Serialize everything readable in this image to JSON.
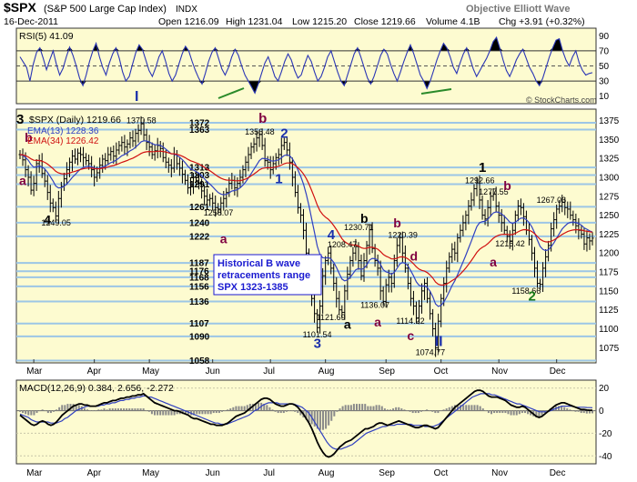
{
  "header": {
    "symbol": "$SPX",
    "name": "(S&P 500 Large Cap Index)",
    "exchange": "INDX",
    "date": "16-Dec-2011",
    "open": "Open 1216.09",
    "high": "High 1231.04",
    "low": "Low 1215.20",
    "close": "Close 1219.66",
    "volume": "Volume 4.1B",
    "change": "Chg +3.91 (+0.32%)",
    "source": "Objective Elliott Wave",
    "credit": "© StockCharts.com"
  },
  "colors": {
    "panel": "#fdfbd0",
    "level_line": "#9cc6e6",
    "wave_black": "#000000",
    "wave_blue": "#1a2faa",
    "wave_maroon": "#800040",
    "wave_green": "#1a7a1a",
    "ema13": "#3040c0",
    "ema34": "#d01010",
    "rsi": "#2a35b5",
    "macd": "#000000",
    "signal": "#3040c0",
    "hist": "#8a8a8a",
    "note": "#1a1ad0",
    "trend": "#2a8a2a"
  },
  "chart_data": [
    {
      "type": "line",
      "panel": "rsi",
      "legend": "RSI(5) 41.09",
      "ylim": [
        0,
        100
      ],
      "yticks": [
        10,
        30,
        50,
        70,
        90
      ],
      "reference_lines": [
        30,
        50,
        70
      ],
      "values": [
        62,
        55,
        48,
        30,
        52,
        68,
        74,
        60,
        45,
        58,
        70,
        52,
        38,
        47,
        62,
        75,
        64,
        50,
        34,
        24,
        38,
        56,
        70,
        80,
        62,
        48,
        38,
        54,
        66,
        74,
        60,
        42,
        30,
        36,
        52,
        68,
        78,
        72,
        58,
        44,
        36,
        48,
        62,
        70,
        56,
        40,
        30,
        38,
        52,
        66,
        76,
        70,
        56,
        44,
        34,
        26,
        40,
        56,
        68,
        74,
        60,
        46,
        38,
        48,
        62,
        72,
        64,
        50,
        38,
        30,
        22,
        14,
        26,
        40,
        54,
        62,
        50,
        36,
        30,
        42,
        56,
        66,
        58,
        44,
        34,
        38,
        52,
        64,
        56,
        42,
        30,
        36,
        48,
        62,
        70,
        56,
        42,
        30,
        24,
        38,
        52,
        66,
        74,
        62,
        48,
        34,
        26,
        36,
        50,
        64,
        72,
        66,
        52,
        40,
        30,
        42,
        56,
        68,
        78,
        66,
        52,
        38,
        30,
        20,
        30,
        44,
        58,
        70,
        80,
        74,
        62,
        48,
        40,
        54,
        66,
        74,
        60,
        46,
        36,
        44,
        52,
        60,
        70,
        82,
        88,
        74,
        58,
        44,
        36,
        46,
        58,
        66,
        72,
        60,
        48,
        40,
        30,
        24,
        34,
        48,
        62,
        74,
        84,
        86,
        70,
        58,
        50,
        62,
        70,
        54,
        44,
        38,
        40,
        41.09
      ]
    },
    {
      "type": "line",
      "panel": "price",
      "legend": "$SPX (Daily) 1219.66",
      "ema13_label": "EMA(13) 1228.36",
      "ema34_label": "EMA(34) 1226.42",
      "ylim": [
        1055,
        1390
      ],
      "yticks": [
        1075,
        1100,
        1125,
        1150,
        1175,
        1200,
        1225,
        1250,
        1275,
        1300,
        1325,
        1350,
        1375
      ],
      "x_ticks": [
        {
          "label": "Mar",
          "i": 5
        },
        {
          "label": "Apr",
          "i": 27
        },
        {
          "label": "May",
          "i": 47
        },
        {
          "label": "Jun",
          "i": 70
        },
        {
          "label": "Jul",
          "i": 91
        },
        {
          "label": "Aug",
          "i": 111
        },
        {
          "label": "Sep",
          "i": 133
        },
        {
          "label": "Oct",
          "i": 153
        },
        {
          "label": "Nov",
          "i": 174
        },
        {
          "label": "Dec",
          "i": 195
        }
      ],
      "closes": [
        1330,
        1323,
        1310,
        1300,
        1283,
        1292,
        1318,
        1322,
        1305,
        1295,
        1280,
        1266,
        1260,
        1249,
        1272,
        1288,
        1298,
        1310,
        1320,
        1328,
        1324,
        1332,
        1330,
        1326,
        1322,
        1318,
        1310,
        1300,
        1306,
        1316,
        1324,
        1322,
        1330,
        1334,
        1328,
        1336,
        1342,
        1346,
        1340,
        1344,
        1352,
        1348,
        1358,
        1362,
        1370.58,
        1356,
        1346,
        1340,
        1330,
        1335,
        1342,
        1338,
        1326,
        1320,
        1316,
        1312,
        1330,
        1318,
        1312,
        1304,
        1296,
        1286,
        1290,
        1300,
        1296,
        1292,
        1282,
        1275,
        1270,
        1272,
        1266,
        1260,
        1258.07,
        1266,
        1272,
        1280,
        1292,
        1296,
        1286,
        1292,
        1300,
        1310,
        1320,
        1330,
        1340,
        1344,
        1352,
        1356.48,
        1342,
        1322,
        1320,
        1310,
        1318,
        1326,
        1330,
        1342,
        1346,
        1336,
        1320,
        1300,
        1280,
        1260,
        1250,
        1230,
        1200,
        1170,
        1140,
        1120,
        1101.54,
        1130,
        1170,
        1190,
        1200,
        1180,
        1160,
        1140,
        1125,
        1121.69,
        1150,
        1172,
        1190,
        1200,
        1208.47,
        1190,
        1170,
        1190,
        1210,
        1230.71,
        1206,
        1190,
        1180,
        1150,
        1136.07,
        1158,
        1168,
        1160,
        1190,
        1210,
        1220.39,
        1200,
        1180,
        1160,
        1140,
        1130,
        1114.22,
        1130,
        1150,
        1160,
        1140,
        1120,
        1100,
        1074.77,
        1110,
        1140,
        1160,
        1180,
        1195,
        1205,
        1200,
        1220,
        1230,
        1240,
        1250,
        1262,
        1270,
        1285,
        1292.66,
        1270,
        1250,
        1245,
        1260,
        1275,
        1277.55,
        1262,
        1250,
        1240,
        1230,
        1222,
        1215.42,
        1230,
        1250,
        1262,
        1260,
        1248,
        1230,
        1218,
        1200,
        1180,
        1160,
        1158.66,
        1180,
        1195,
        1210,
        1232,
        1244,
        1258,
        1262,
        1267.06,
        1260,
        1258,
        1250,
        1244,
        1236,
        1230,
        1225,
        1212,
        1220,
        1216,
        1219.66
      ],
      "levels": [
        1372,
        1363,
        1313,
        1303,
        1291,
        1261,
        1240,
        1222,
        1187,
        1176,
        1168,
        1156,
        1136,
        1107,
        1090,
        1058
      ],
      "price_labels": [
        {
          "text": "1370.58",
          "i": 44,
          "v": 1375
        },
        {
          "text": "1356.48",
          "i": 87,
          "v": 1360
        },
        {
          "text": "1258.07",
          "i": 72,
          "v": 1253
        },
        {
          "text": "1249.05",
          "i": 13,
          "v": 1240
        },
        {
          "text": "1230.71",
          "i": 123,
          "v": 1234
        },
        {
          "text": "1220.39",
          "i": 139,
          "v": 1224
        },
        {
          "text": "1208.47",
          "i": 117,
          "v": 1211
        },
        {
          "text": "1292.66",
          "i": 167,
          "v": 1296
        },
        {
          "text": "1277.55",
          "i": 172,
          "v": 1281
        },
        {
          "text": "1267.06",
          "i": 193,
          "v": 1270
        },
        {
          "text": "1215.42",
          "i": 178,
          "v": 1212
        },
        {
          "text": "1158.66",
          "i": 184,
          "v": 1150
        },
        {
          "text": "1136.07",
          "i": 129,
          "v": 1131
        },
        {
          "text": "1121.69",
          "i": 113,
          "v": 1115
        },
        {
          "text": "1114.22",
          "i": 142,
          "v": 1110
        },
        {
          "text": "1101.54",
          "i": 108,
          "v": 1092
        },
        {
          "text": "1074.77",
          "i": 149,
          "v": 1069
        }
      ],
      "wave_labels": [
        {
          "text": "3",
          "i": 0,
          "v": 1371,
          "color": "#000000",
          "size": 15
        },
        {
          "text": "b",
          "i": 3,
          "v": 1347,
          "color": "#800040",
          "size": 14
        },
        {
          "text": "a",
          "i": 1,
          "v": 1290,
          "color": "#800040",
          "size": 14
        },
        {
          "text": "4",
          "i": 10,
          "v": 1238,
          "color": "#000000",
          "size": 14
        },
        {
          "text": "I",
          "i": 43,
          "v": 1401,
          "color": "#1a2faa",
          "size": 16
        },
        {
          "text": "b",
          "i": 88,
          "v": 1372,
          "color": "#800040",
          "size": 15
        },
        {
          "text": "2",
          "i": 96,
          "v": 1352,
          "color": "#1a2faa",
          "size": 15
        },
        {
          "text": "1",
          "i": 94,
          "v": 1292,
          "color": "#1a2faa",
          "size": 15
        },
        {
          "text": "a",
          "i": 74,
          "v": 1213,
          "color": "#800040",
          "size": 14
        },
        {
          "text": "4",
          "i": 113,
          "v": 1218,
          "color": "#1a2faa",
          "size": 15
        },
        {
          "text": "b",
          "i": 125,
          "v": 1240,
          "color": "#000000",
          "size": 14
        },
        {
          "text": "b",
          "i": 137,
          "v": 1234,
          "color": "#800040",
          "size": 14
        },
        {
          "text": "d",
          "i": 143,
          "v": 1190,
          "color": "#800040",
          "size": 14
        },
        {
          "text": "a",
          "i": 130,
          "v": 1103,
          "color": "#800040",
          "size": 14
        },
        {
          "text": "c",
          "i": 142,
          "v": 1085,
          "color": "#800040",
          "size": 14
        },
        {
          "text": "a",
          "i": 119,
          "v": 1100,
          "color": "#000000",
          "size": 14
        },
        {
          "text": "3",
          "i": 108,
          "v": 1075,
          "color": "#1a2faa",
          "size": 15
        },
        {
          "text": "1",
          "i": 168,
          "v": 1307,
          "color": "#000000",
          "size": 15
        },
        {
          "text": "b",
          "i": 177,
          "v": 1283,
          "color": "#800040",
          "size": 14
        },
        {
          "text": "a",
          "i": 172,
          "v": 1182,
          "color": "#800040",
          "size": 14
        },
        {
          "text": "2",
          "i": 186,
          "v": 1137,
          "color": "#1a7a1a",
          "size": 15
        },
        {
          "text": "II",
          "i": 152,
          "v": 1077,
          "color": "#1a2faa",
          "size": 16
        }
      ],
      "note": [
        "Historical B wave",
        "retracements range",
        "SPX 1323-1385"
      ]
    },
    {
      "type": "line",
      "panel": "macd",
      "legend": "MACD(12,26,9) 0.384, 2.656, -2.272",
      "ylim": [
        -47,
        27
      ],
      "yticks": [
        -40,
        -20,
        0,
        20
      ],
      "x_ticks": [
        "Mar",
        "Apr",
        "May",
        "Jun",
        "Jul",
        "Aug",
        "Sep",
        "Oct",
        "Nov",
        "Dec"
      ],
      "macd": [
        -4,
        -6,
        -8,
        -10,
        -12,
        -13,
        -12,
        -10,
        -9,
        -10,
        -12,
        -13,
        -12,
        -10,
        -7,
        -4,
        -2,
        0,
        2,
        4,
        5,
        6,
        6,
        5,
        5,
        4,
        4,
        4,
        5,
        6,
        7,
        7,
        8,
        9,
        9,
        10,
        11,
        11,
        12,
        12,
        13,
        13,
        14,
        14,
        15,
        13,
        11,
        9,
        7,
        6,
        5,
        4,
        3,
        2,
        1,
        0,
        0,
        -1,
        -2,
        -3,
        -4,
        -6,
        -7,
        -7,
        -8,
        -9,
        -10,
        -11,
        -12,
        -12,
        -13,
        -13,
        -13,
        -12,
        -11,
        -9,
        -7,
        -5,
        -4,
        -3,
        -2,
        0,
        2,
        4,
        6,
        8,
        10,
        11,
        11,
        10,
        8,
        6,
        5,
        4,
        4,
        5,
        6,
        6,
        5,
        3,
        0,
        -3,
        -7,
        -11,
        -16,
        -22,
        -28,
        -33,
        -37,
        -40,
        -41,
        -40,
        -38,
        -35,
        -32,
        -30,
        -28,
        -27,
        -26,
        -24,
        -22,
        -20,
        -18,
        -16,
        -16,
        -15,
        -14,
        -12,
        -11,
        -11,
        -12,
        -13,
        -12,
        -11,
        -10,
        -9,
        -10,
        -11,
        -12,
        -13,
        -14,
        -15,
        -15,
        -14,
        -13,
        -13,
        -14,
        -15,
        -16,
        -15,
        -12,
        -9,
        -6,
        -3,
        0,
        3,
        5,
        7,
        9,
        11,
        13,
        15,
        17,
        18,
        18,
        17,
        15,
        13,
        12,
        12,
        12,
        11,
        10,
        9,
        7,
        5,
        4,
        3,
        3,
        4,
        3,
        1,
        -1,
        -3,
        -5,
        -6,
        -5,
        -3,
        -1,
        1,
        3,
        5,
        6,
        7,
        7,
        6,
        5,
        4,
        3,
        2,
        1,
        1,
        0.5,
        0.4,
        0.384
      ],
      "signal": [
        -3,
        -4,
        -5,
        -6,
        -8,
        -9,
        -10,
        -10,
        -10,
        -10,
        -10,
        -11,
        -11,
        -11,
        -10,
        -9,
        -7,
        -6,
        -4,
        -2,
        0,
        1,
        2,
        3,
        4,
        4,
        4,
        4,
        4,
        5,
        5,
        6,
        6,
        7,
        7,
        8,
        9,
        9,
        10,
        10,
        11,
        11,
        12,
        12,
        13,
        13,
        12,
        12,
        11,
        10,
        9,
        8,
        7,
        6,
        5,
        4,
        3,
        2,
        1,
        0,
        -1,
        -2,
        -3,
        -4,
        -5,
        -6,
        -7,
        -8,
        -9,
        -10,
        -11,
        -11,
        -12,
        -12,
        -12,
        -11,
        -10,
        -9,
        -8,
        -7,
        -6,
        -5,
        -4,
        -2,
        0,
        1,
        3,
        5,
        6,
        7,
        7,
        7,
        7,
        6,
        6,
        6,
        6,
        6,
        6,
        5,
        4,
        3,
        1,
        -1,
        -4,
        -8,
        -12,
        -16,
        -20,
        -24,
        -28,
        -31,
        -33,
        -34,
        -34,
        -34,
        -33,
        -32,
        -31,
        -30,
        -28,
        -26,
        -24,
        -22,
        -20,
        -19,
        -18,
        -17,
        -16,
        -15,
        -14,
        -14,
        -13,
        -13,
        -13,
        -12,
        -12,
        -12,
        -12,
        -12,
        -12,
        -13,
        -13,
        -13,
        -13,
        -14,
        -14,
        -14,
        -14,
        -13,
        -12,
        -10,
        -8,
        -6,
        -4,
        -2,
        0,
        2,
        4,
        6,
        8,
        10,
        12,
        13,
        14,
        15,
        15,
        15,
        15,
        14,
        14,
        13,
        12,
        11,
        10,
        9,
        8,
        7,
        6,
        6,
        5,
        4,
        3,
        2,
        1,
        0,
        -1,
        -1,
        -1,
        -1,
        0,
        1,
        2,
        3,
        4,
        4,
        4,
        4,
        4,
        3,
        3,
        3,
        3,
        2.8,
        2.7,
        2.656
      ]
    }
  ]
}
